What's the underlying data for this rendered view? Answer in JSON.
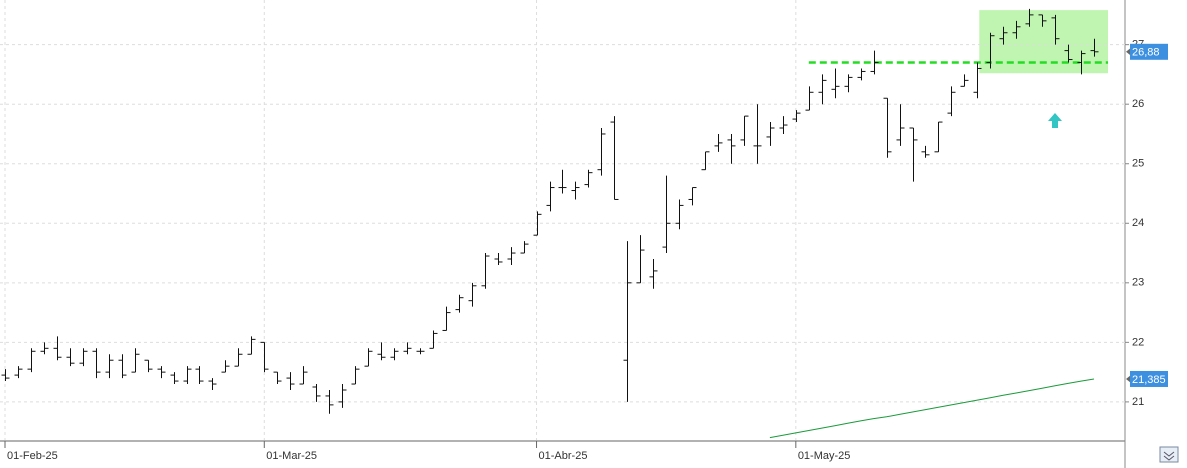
{
  "chart_data": {
    "type": "ohlc",
    "categories": [
      "01-Feb-25",
      null,
      null,
      null,
      null,
      null,
      null,
      null,
      null,
      null,
      null,
      null,
      null,
      null,
      null,
      null,
      null,
      null,
      null,
      null,
      "01-Mar-25",
      null,
      null,
      null,
      null,
      null,
      null,
      null,
      null,
      null,
      null,
      null,
      null,
      null,
      null,
      null,
      null,
      null,
      null,
      null,
      null,
      "01-Abr-25",
      null,
      null,
      null,
      null,
      null,
      null,
      null,
      null,
      null,
      null,
      null,
      null,
      null,
      null,
      null,
      null,
      null,
      null,
      null,
      "01-May-25",
      null,
      null,
      null,
      null,
      null,
      null,
      null,
      null,
      null,
      null,
      null,
      null,
      null,
      null,
      null,
      null,
      null,
      null,
      null,
      null,
      null,
      null,
      null
    ],
    "open": [
      21.45,
      21.45,
      21.55,
      21.85,
      21.9,
      21.75,
      21.65,
      21.85,
      21.5,
      21.7,
      21.5,
      21.7,
      21.55,
      21.45,
      21.35,
      21.55,
      21.35,
      21.5,
      21.6,
      21.8,
      22.0,
      21.5,
      21.4,
      21.3,
      21.25,
      21.1,
      21.0,
      21.3,
      21.6,
      21.8,
      21.75,
      21.85,
      21.85,
      21.9,
      22.2,
      22.55,
      22.7,
      22.95,
      23.4,
      23.4,
      23.5,
      23.8,
      24.3,
      24.6,
      24.55,
      24.65,
      24.9,
      25.7,
      21.7,
      23.0,
      23.1,
      23.6,
      24.0,
      24.4,
      24.9,
      25.3,
      25.4,
      25.4,
      25.3,
      25.45,
      25.6,
      25.75,
      25.9,
      26.2,
      26.25,
      26.3,
      26.45,
      26.55,
      26.1,
      25.4,
      25.6,
      25.2,
      25.2,
      25.85,
      26.3,
      26.2,
      26.7,
      27.1,
      27.2,
      27.35,
      27.5,
      27.45,
      26.9,
      26.7,
      26.9
    ],
    "high": [
      21.55,
      21.6,
      21.9,
      22.0,
      22.1,
      21.9,
      21.9,
      21.9,
      21.8,
      21.8,
      21.9,
      21.7,
      21.6,
      21.5,
      21.6,
      21.6,
      21.4,
      21.7,
      21.9,
      22.1,
      22.0,
      21.5,
      21.5,
      21.6,
      21.3,
      21.2,
      21.3,
      21.6,
      21.9,
      22.0,
      21.9,
      22.0,
      21.9,
      22.2,
      22.6,
      22.8,
      23.0,
      23.5,
      23.5,
      23.6,
      23.7,
      24.2,
      24.7,
      24.9,
      24.7,
      24.9,
      25.6,
      25.8,
      23.7,
      23.8,
      23.4,
      24.8,
      24.4,
      24.6,
      25.2,
      25.5,
      25.5,
      25.8,
      26.0,
      25.7,
      25.8,
      25.9,
      26.3,
      26.5,
      26.6,
      26.5,
      26.6,
      26.9,
      26.1,
      26.0,
      25.6,
      25.3,
      25.7,
      26.3,
      26.5,
      26.7,
      27.2,
      27.3,
      27.4,
      27.6,
      27.5,
      27.5,
      27.0,
      26.9,
      27.1
    ],
    "low": [
      21.35,
      21.4,
      21.5,
      21.8,
      21.7,
      21.6,
      21.6,
      21.4,
      21.4,
      21.4,
      21.5,
      21.5,
      21.4,
      21.3,
      21.3,
      21.3,
      21.2,
      21.5,
      21.6,
      21.8,
      21.5,
      21.3,
      21.2,
      21.3,
      21.0,
      20.8,
      20.9,
      21.3,
      21.6,
      21.7,
      21.7,
      21.8,
      21.8,
      21.9,
      22.2,
      22.5,
      22.6,
      22.9,
      23.3,
      23.3,
      23.5,
      23.8,
      24.2,
      24.5,
      24.4,
      24.6,
      24.8,
      24.4,
      21.0,
      23.0,
      22.9,
      23.5,
      23.9,
      24.3,
      24.9,
      25.2,
      25.0,
      25.3,
      25.0,
      25.3,
      25.5,
      25.7,
      25.9,
      26.0,
      26.1,
      26.2,
      26.4,
      26.5,
      25.1,
      25.3,
      24.7,
      25.1,
      25.2,
      25.8,
      26.3,
      26.1,
      26.6,
      27.0,
      27.1,
      27.3,
      27.3,
      27.0,
      26.7,
      26.5,
      26.8
    ],
    "close": [
      21.4,
      21.55,
      21.85,
      21.9,
      21.75,
      21.65,
      21.85,
      21.5,
      21.7,
      21.45,
      21.8,
      21.55,
      21.5,
      21.35,
      21.55,
      21.35,
      21.3,
      21.6,
      21.8,
      22.05,
      21.55,
      21.35,
      21.3,
      21.5,
      21.1,
      20.95,
      21.2,
      21.55,
      21.85,
      21.75,
      21.85,
      21.9,
      21.85,
      22.15,
      22.5,
      22.75,
      22.95,
      23.45,
      23.35,
      23.5,
      23.65,
      24.15,
      24.6,
      24.6,
      24.6,
      24.85,
      25.5,
      24.4,
      23.0,
      23.55,
      23.2,
      24.0,
      24.3,
      24.6,
      25.2,
      25.35,
      25.3,
      25.8,
      25.3,
      25.6,
      25.65,
      25.85,
      26.2,
      26.4,
      26.3,
      26.45,
      26.55,
      26.7,
      25.2,
      25.6,
      25.4,
      25.15,
      25.7,
      26.2,
      26.4,
      26.6,
      27.15,
      27.2,
      27.3,
      27.5,
      27.4,
      27.1,
      26.75,
      26.85,
      26.88
    ],
    "bar_color": "#111111",
    "ma": {
      "color": "#1a9b3a",
      "values": [
        null,
        null,
        null,
        null,
        null,
        null,
        null,
        null,
        null,
        null,
        null,
        null,
        null,
        null,
        null,
        null,
        null,
        null,
        null,
        null,
        null,
        null,
        null,
        null,
        null,
        null,
        null,
        null,
        null,
        null,
        null,
        null,
        null,
        null,
        null,
        null,
        null,
        null,
        null,
        null,
        null,
        null,
        null,
        null,
        null,
        null,
        null,
        null,
        null,
        null,
        null,
        null,
        null,
        null,
        null,
        null,
        null,
        null,
        null,
        20.4,
        20.44,
        20.48,
        20.52,
        20.56,
        20.6,
        20.64,
        20.68,
        20.72,
        20.75,
        20.79,
        20.83,
        20.87,
        20.91,
        20.95,
        20.99,
        21.03,
        21.07,
        21.11,
        21.15,
        21.19,
        21.23,
        21.27,
        21.31,
        21.35,
        21.385
      ]
    },
    "resistance": {
      "value": 26.7,
      "start": 62,
      "color": "#22dd22"
    },
    "zone": {
      "start": 76,
      "end": 84,
      "ymin": 26.52,
      "ymax": 27.58,
      "color": "#bff5b0"
    },
    "last_labels": [
      {
        "value": 26.88,
        "label": "26,88",
        "color": "#3d8fe0"
      },
      {
        "value": 21.385,
        "label": "21,385",
        "color": "#3d8fe0"
      }
    ],
    "ylim": [
      20.36,
      27.75
    ],
    "yticks": [
      21,
      22,
      23,
      24,
      25,
      26,
      27
    ],
    "grid": true
  }
}
